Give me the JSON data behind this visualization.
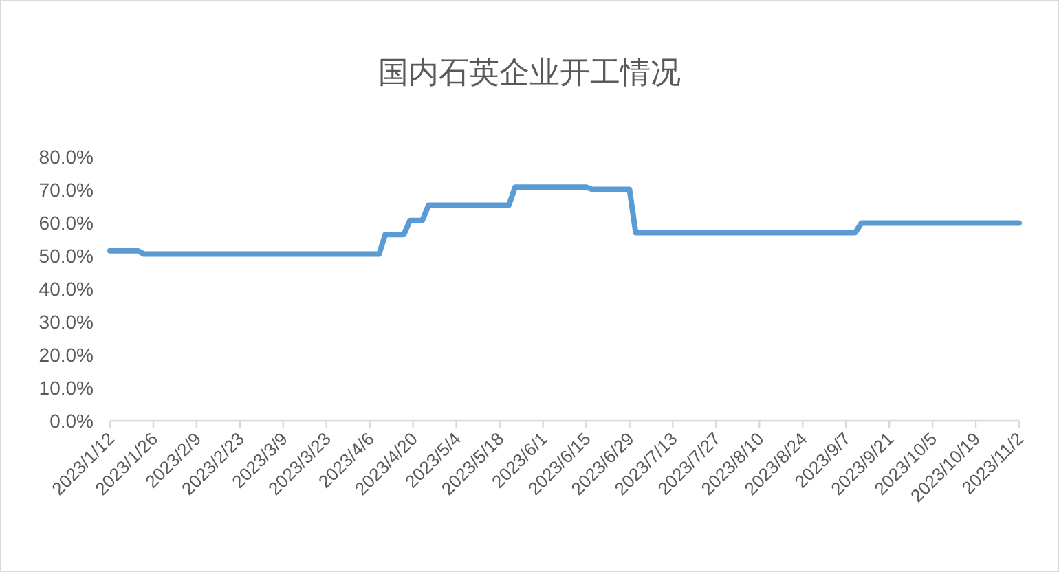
{
  "chart_data": {
    "type": "line",
    "title": "国内石英企业开工情况",
    "x": [
      "2023-01-12",
      "2023-01-21",
      "2023-01-23",
      "2023-04-09",
      "2023-04-11",
      "2023-04-17",
      "2023-04-19",
      "2023-04-23",
      "2023-04-25",
      "2023-05-21",
      "2023-05-23",
      "2023-06-15",
      "2023-06-17",
      "2023-06-29",
      "2023-07-01",
      "2023-09-10",
      "2023-09-12",
      "2023-11-02"
    ],
    "series": [
      {
        "color": "#5b9bd5",
        "values": [
          51.5,
          51.5,
          50.5,
          50.5,
          56.4,
          56.4,
          60.7,
          60.7,
          65.3,
          65.3,
          70.8,
          70.8,
          70.1,
          70.1,
          57.0,
          57.0,
          59.9,
          59.9
        ]
      }
    ],
    "xlim": [
      "2023-01-12",
      "2023-11-02"
    ],
    "xticks": [
      {
        "value": "2023-01-12",
        "label": "2023/1/12"
      },
      {
        "value": "2023-01-26",
        "label": "2023/1/26"
      },
      {
        "value": "2023-02-09",
        "label": "2023/2/9"
      },
      {
        "value": "2023-02-23",
        "label": "2023/2/23"
      },
      {
        "value": "2023-03-09",
        "label": "2023/3/9"
      },
      {
        "value": "2023-03-23",
        "label": "2023/3/23"
      },
      {
        "value": "2023-04-06",
        "label": "2023/4/6"
      },
      {
        "value": "2023-04-20",
        "label": "2023/4/20"
      },
      {
        "value": "2023-05-04",
        "label": "2023/5/4"
      },
      {
        "value": "2023-05-18",
        "label": "2023/5/18"
      },
      {
        "value": "2023-06-01",
        "label": "2023/6/1"
      },
      {
        "value": "2023-06-15",
        "label": "2023/6/15"
      },
      {
        "value": "2023-06-29",
        "label": "2023/6/29"
      },
      {
        "value": "2023-07-13",
        "label": "2023/7/13"
      },
      {
        "value": "2023-07-27",
        "label": "2023/7/27"
      },
      {
        "value": "2023-08-10",
        "label": "2023/8/10"
      },
      {
        "value": "2023-08-24",
        "label": "2023/8/24"
      },
      {
        "value": "2023-09-07",
        "label": "2023/9/7"
      },
      {
        "value": "2023-09-21",
        "label": "2023/9/21"
      },
      {
        "value": "2023-10-05",
        "label": "2023/10/5"
      },
      {
        "value": "2023-10-19",
        "label": "2023/10/19"
      },
      {
        "value": "2023-11-02",
        "label": "2023/11/2"
      }
    ],
    "ylim": [
      0,
      80
    ],
    "yticks": [
      {
        "value": 0,
        "label": "0.0%"
      },
      {
        "value": 10,
        "label": "10.0%"
      },
      {
        "value": 20,
        "label": "20.0%"
      },
      {
        "value": 30,
        "label": "30.0%"
      },
      {
        "value": 40,
        "label": "40.0%"
      },
      {
        "value": 50,
        "label": "50.0%"
      },
      {
        "value": 60,
        "label": "60.0%"
      },
      {
        "value": 70,
        "label": "70.0%"
      },
      {
        "value": 80,
        "label": "80.0%"
      }
    ],
    "grid": false,
    "marker": "none",
    "line_style": "solid"
  }
}
